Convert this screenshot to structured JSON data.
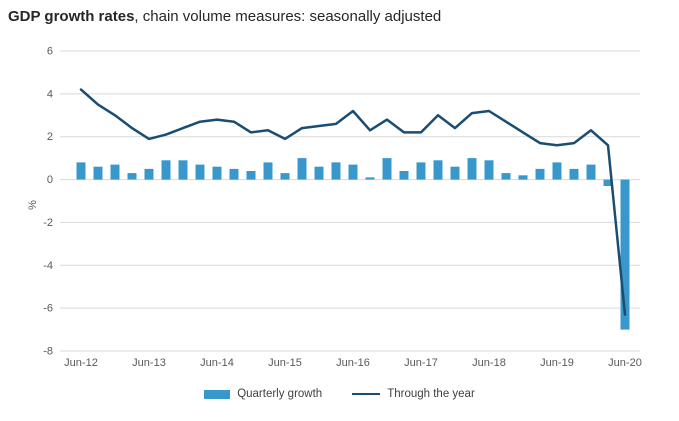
{
  "title": {
    "bold": "GDP growth rates",
    "rest": ", chain volume measures: seasonally adjusted"
  },
  "colors": {
    "bar": "#3898cc",
    "line": "#1a4d71",
    "grid": "#d9d9d9",
    "axis_text": "#595959",
    "title_text": "#262626",
    "legend_text": "#404040"
  },
  "chart_data": {
    "type": "bar",
    "subtype": "bar+line combo",
    "title": "GDP growth rates, chain volume measures: seasonally adjusted",
    "ylabel": "%",
    "xlabel": "",
    "ylim": [
      -8,
      6
    ],
    "ytick_step": 2,
    "ytick_labels": [
      "6",
      "4",
      "2",
      "0",
      "-2",
      "-4",
      "-6",
      "-8"
    ],
    "grid": "horizontal",
    "legend_position": "bottom",
    "xtick_every": 4,
    "xtick_labels": [
      "Jun-12",
      "Jun-13",
      "Jun-14",
      "Jun-15",
      "Jun-16",
      "Jun-17",
      "Jun-18",
      "Jun-19",
      "Jun-20"
    ],
    "categories": [
      "Jun-12",
      "Sep-12",
      "Dec-12",
      "Mar-13",
      "Jun-13",
      "Sep-13",
      "Dec-13",
      "Mar-14",
      "Jun-14",
      "Sep-14",
      "Dec-14",
      "Mar-15",
      "Jun-15",
      "Sep-15",
      "Dec-15",
      "Mar-16",
      "Jun-16",
      "Sep-16",
      "Dec-16",
      "Mar-17",
      "Jun-17",
      "Sep-17",
      "Dec-17",
      "Mar-18",
      "Jun-18",
      "Sep-18",
      "Dec-18",
      "Mar-19",
      "Jun-19",
      "Sep-19",
      "Dec-19",
      "Mar-20",
      "Jun-20"
    ],
    "series": [
      {
        "name": "Quarterly growth",
        "type": "bar",
        "values": [
          0.8,
          0.6,
          0.7,
          0.3,
          0.5,
          0.9,
          0.9,
          0.7,
          0.6,
          0.5,
          0.4,
          0.8,
          0.3,
          1.0,
          0.6,
          0.8,
          0.7,
          0.1,
          1.0,
          0.4,
          0.8,
          0.9,
          0.6,
          1.0,
          0.9,
          0.3,
          0.2,
          0.5,
          0.8,
          0.5,
          0.7,
          -0.3,
          -7.0
        ]
      },
      {
        "name": "Through the year",
        "type": "line",
        "values": [
          4.2,
          3.5,
          3.0,
          2.4,
          1.9,
          2.1,
          2.4,
          2.7,
          2.8,
          2.7,
          2.2,
          2.3,
          1.9,
          2.4,
          2.5,
          2.6,
          3.2,
          2.3,
          2.8,
          2.2,
          2.2,
          3.0,
          2.4,
          3.1,
          3.2,
          2.7,
          2.2,
          1.7,
          1.6,
          1.7,
          2.3,
          1.6,
          -6.3
        ]
      }
    ]
  }
}
